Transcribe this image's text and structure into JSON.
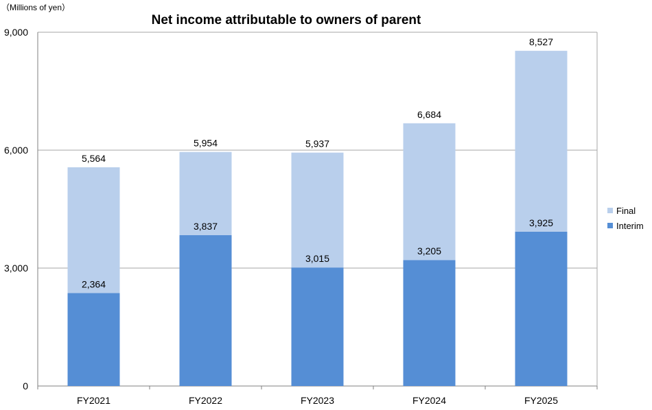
{
  "chart_data": {
    "type": "bar",
    "stacked": true,
    "title": "Net income attributable to owners of parent",
    "unit_label": "（Millions of yen）",
    "categories": [
      "FY2021",
      "FY2022",
      "FY2023",
      "FY2024",
      "FY2025"
    ],
    "series": [
      {
        "name": "Interim",
        "values": [
          2364,
          3837,
          3015,
          3205,
          3925
        ],
        "color": "#558ed5"
      },
      {
        "name": "Final",
        "values": [
          3200,
          2117,
          2922,
          3479,
          4602
        ],
        "color": "#b9cfec"
      }
    ],
    "interim_labels": [
      "2,364",
      "3,837",
      "3,015",
      "3,205",
      "3,925"
    ],
    "total_labels": [
      "5,564",
      "5,954",
      "5,937",
      "6,684",
      "8,527"
    ],
    "ylim": [
      0,
      9000
    ],
    "yticks": [
      0,
      3000,
      6000,
      9000
    ],
    "ytick_labels": [
      "0",
      "3,000",
      "6,000",
      "9,000"
    ],
    "grid": true,
    "legend_position": "right"
  }
}
